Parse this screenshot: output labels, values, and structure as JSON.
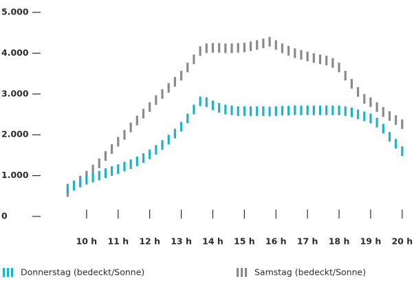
{
  "chart_data": {
    "type": "dash-line",
    "x": [
      9.4,
      9.6,
      9.8,
      10.0,
      10.2,
      10.4,
      10.6,
      10.8,
      11.0,
      11.2,
      11.4,
      11.6,
      11.8,
      12.0,
      12.2,
      12.4,
      12.6,
      12.8,
      13.0,
      13.2,
      13.4,
      13.6,
      13.8,
      14.0,
      14.2,
      14.4,
      14.6,
      14.8,
      15.0,
      15.2,
      15.4,
      15.6,
      15.8,
      16.0,
      16.2,
      16.4,
      16.6,
      16.8,
      17.0,
      17.2,
      17.4,
      17.6,
      17.8,
      18.0,
      18.2,
      18.4,
      18.6,
      18.8,
      19.0,
      19.2,
      19.4,
      19.6,
      19.8,
      20.0
    ],
    "series": [
      {
        "name": "Donnerstag (bedeckt/Sonne)",
        "color": "#1ab3c9",
        "values": [
          680,
          760,
          830,
          900,
          950,
          1000,
          1060,
          1110,
          1160,
          1220,
          1280,
          1350,
          1430,
          1520,
          1630,
          1750,
          1880,
          2030,
          2200,
          2400,
          2620,
          2820,
          2800,
          2720,
          2660,
          2620,
          2600,
          2580,
          2580,
          2580,
          2580,
          2580,
          2570,
          2580,
          2590,
          2590,
          2600,
          2600,
          2600,
          2600,
          2600,
          2600,
          2600,
          2600,
          2580,
          2550,
          2500,
          2450,
          2400,
          2300,
          2150,
          1950,
          1780,
          1600
        ]
      },
      {
        "name": "Samstag (bedeckt/Sonne)",
        "color": "#8a8a8a",
        "values": [
          600,
          750,
          880,
          1000,
          1150,
          1300,
          1480,
          1650,
          1830,
          2000,
          2180,
          2350,
          2520,
          2680,
          2850,
          3000,
          3150,
          3300,
          3450,
          3650,
          3850,
          4050,
          4120,
          4130,
          4130,
          4120,
          4120,
          4130,
          4140,
          4170,
          4200,
          4240,
          4280,
          4200,
          4120,
          4060,
          4000,
          3960,
          3920,
          3880,
          3850,
          3820,
          3760,
          3650,
          3450,
          3250,
          3050,
          2880,
          2800,
          2680,
          2560,
          2460,
          2360,
          2260
        ]
      }
    ],
    "xlim": [
      9,
      20.2
    ],
    "xticks": [
      {
        "value": 10,
        "label": "10 h"
      },
      {
        "value": 11,
        "label": "11 h"
      },
      {
        "value": 12,
        "label": "12 h"
      },
      {
        "value": 13,
        "label": "13 h"
      },
      {
        "value": 14,
        "label": "14 h"
      },
      {
        "value": 15,
        "label": "15 h"
      },
      {
        "value": 16,
        "label": "16 h"
      },
      {
        "value": 17,
        "label": "17 h"
      },
      {
        "value": 18,
        "label": "18 h"
      },
      {
        "value": 19,
        "label": "19 h"
      },
      {
        "value": 20,
        "label": "20 h"
      }
    ],
    "ylim": [
      0,
      5000
    ],
    "yticks": [
      0,
      {
        "value": 1000,
        "label": "1.000"
      },
      {
        "value": 2000,
        "label": "2.000"
      },
      {
        "value": 3000,
        "label": "3.000"
      },
      {
        "value": 4000,
        "label": "4.000"
      },
      {
        "value": 5000,
        "label": "5.000"
      }
    ],
    "legend": "bottom"
  }
}
